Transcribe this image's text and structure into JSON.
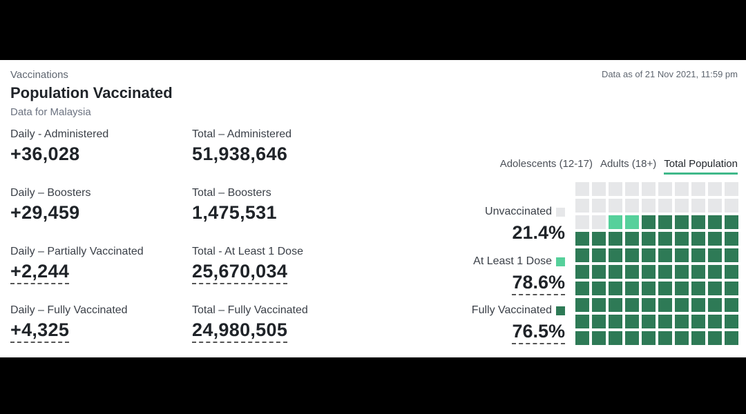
{
  "header": {
    "section": "Vaccinations",
    "title": "Population Vaccinated",
    "subtitle": "Data for Malaysia",
    "as_of": "Data as of 21 Nov 2021, 11:59 pm"
  },
  "stats": {
    "daily_administered": {
      "label": "Daily - Administered",
      "value": "+36,028"
    },
    "total_administered": {
      "label": "Total – Administered",
      "value": "51,938,646"
    },
    "daily_boosters": {
      "label": "Daily – Boosters",
      "value": "+29,459"
    },
    "total_boosters": {
      "label": "Total – Boosters",
      "value": "1,475,531"
    },
    "daily_partial": {
      "label": "Daily – Partially Vaccinated",
      "value": "+2,244"
    },
    "total_one_dose": {
      "label": "Total - At Least 1 Dose",
      "value": "25,670,034"
    },
    "daily_full": {
      "label": "Daily – Fully Vaccinated",
      "value": "+4,325"
    },
    "total_full": {
      "label": "Total – Fully Vaccinated",
      "value": "24,980,505"
    }
  },
  "tabs": [
    {
      "label": "Adolescents (12-17)"
    },
    {
      "label": "Adults (18+)"
    },
    {
      "label": "Total Population",
      "active": true
    }
  ],
  "legend": {
    "unvaccinated": {
      "label": "Unvaccinated",
      "value": "21.4%",
      "color": "#e6e7e9"
    },
    "one_dose": {
      "label": "At Least 1 Dose",
      "value": "78.6%",
      "color": "#56d09b"
    },
    "fully": {
      "label": "Fully Vaccinated",
      "value": "76.5%",
      "color": "#2e7a56"
    }
  },
  "chart_data": {
    "type": "waffle",
    "grid": [
      10,
      10
    ],
    "series": [
      {
        "name": "Unvaccinated",
        "value": 21.4
      },
      {
        "name": "At Least 1 Dose",
        "value": 78.6
      },
      {
        "name": "Fully Vaccinated",
        "value": 76.5
      }
    ],
    "cells": {
      "fully": 76,
      "at_least_1_dose_only": 2,
      "unvaccinated": 22
    }
  }
}
